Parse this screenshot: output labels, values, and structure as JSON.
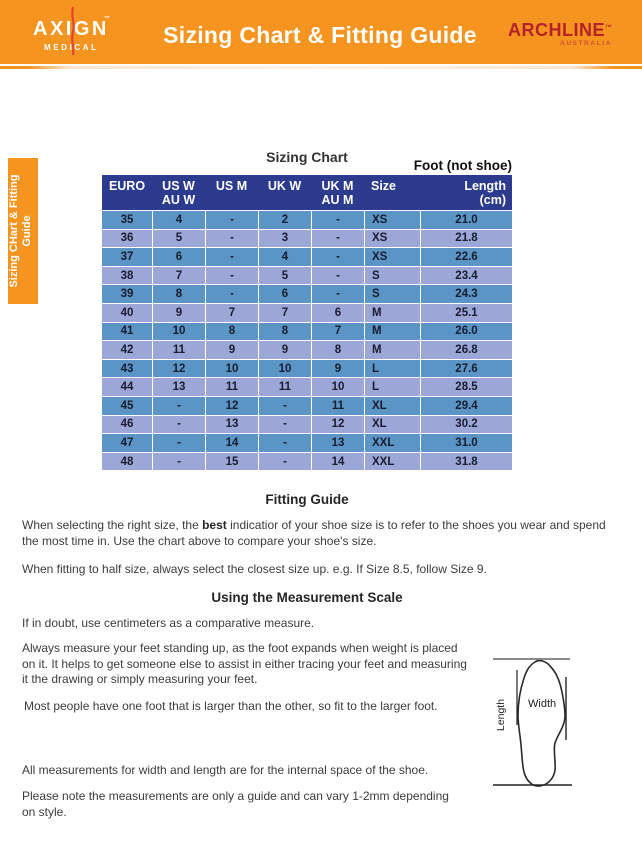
{
  "header": {
    "brand": {
      "name": "AXIGN",
      "tm": "™",
      "sub": "MEDICAL"
    },
    "title": "Sizing Chart & Fitting Guide",
    "partner": {
      "name": "ARCHLINE",
      "tm": "™",
      "sub": "AUSTRALIA"
    }
  },
  "side_tab": {
    "lines": [
      "Sizing CHart",
      "& Fitting Guide"
    ]
  },
  "colors": {
    "banner_orange": "#F5941F",
    "header_navy": "#2C3B8E",
    "row_blue": "#5B95C5",
    "row_periwinkle": "#9CA7D8",
    "archline_red": "#B5222B"
  },
  "sizing_chart": {
    "title": "Sizing Chart",
    "foot_note": "Foot (not shoe)",
    "columns": [
      [
        "EURO"
      ],
      [
        "US W",
        "AU W"
      ],
      [
        "US M"
      ],
      [
        "UK W"
      ],
      [
        "UK M",
        "AU M"
      ],
      [
        "Size"
      ],
      [
        "Length",
        "(cm)"
      ]
    ],
    "rows": [
      [
        "35",
        "4",
        "-",
        "2",
        "-",
        "XS",
        "21.0"
      ],
      [
        "36",
        "5",
        "-",
        "3",
        "-",
        "XS",
        "21.8"
      ],
      [
        "37",
        "6",
        "-",
        "4",
        "-",
        "XS",
        "22.6"
      ],
      [
        "38",
        "7",
        "-",
        "5",
        "-",
        "S",
        "23.4"
      ],
      [
        "39",
        "8",
        "-",
        "6",
        "-",
        "S",
        "24.3"
      ],
      [
        "40",
        "9",
        "7",
        "7",
        "6",
        "M",
        "25.1"
      ],
      [
        "41",
        "10",
        "8",
        "8",
        "7",
        "M",
        "26.0"
      ],
      [
        "42",
        "11",
        "9",
        "9",
        "8",
        "M",
        "26.8"
      ],
      [
        "43",
        "12",
        "10",
        "10",
        "9",
        "L",
        "27.6"
      ],
      [
        "44",
        "13",
        "11",
        "11",
        "10",
        "L",
        "28.5"
      ],
      [
        "45",
        "-",
        "12",
        "-",
        "11",
        "XL",
        "29.4"
      ],
      [
        "46",
        "-",
        "13",
        "-",
        "12",
        "XL",
        "30.2"
      ],
      [
        "47",
        "-",
        "14",
        "-",
        "13",
        "XXL",
        "31.0"
      ],
      [
        "48",
        "-",
        "15",
        "-",
        "14",
        "XXL",
        "31.8"
      ]
    ]
  },
  "fitting_guide": {
    "heading": "Fitting Guide",
    "p1_pre": "When selecting the right size, the ",
    "p1_bold": "best",
    "p1_post": " indicatior of your shoe size is to refer to the shoes you wear and spend the most time in. Use the chart above to compare your shoe's size.",
    "p2": "When fitting to half size, always select the closest size up. e.g. If Size 8.5, follow Size 9."
  },
  "measurement": {
    "heading": "Using the Measurement Scale",
    "p1": "If in doubt, use centimeters as a comparative measure.",
    "p2": [
      "Always measure your feet standing up, as the foot expands when weight is placed",
      "on it. It helps to get someone else to assist in either tracing your feet and measuring",
      "it the drawing or simply measuring your feet."
    ],
    "p3": "Most people have one foot that is larger than the other, so fit to the larger foot.",
    "p4": "All measurements for width and length are for the internal space of the shoe.",
    "p5": [
      "Please note the measurements are only a guide and can vary 1-2mm depending",
      "on style."
    ]
  },
  "diagram": {
    "width_label": "Width",
    "length_label": "Length"
  }
}
